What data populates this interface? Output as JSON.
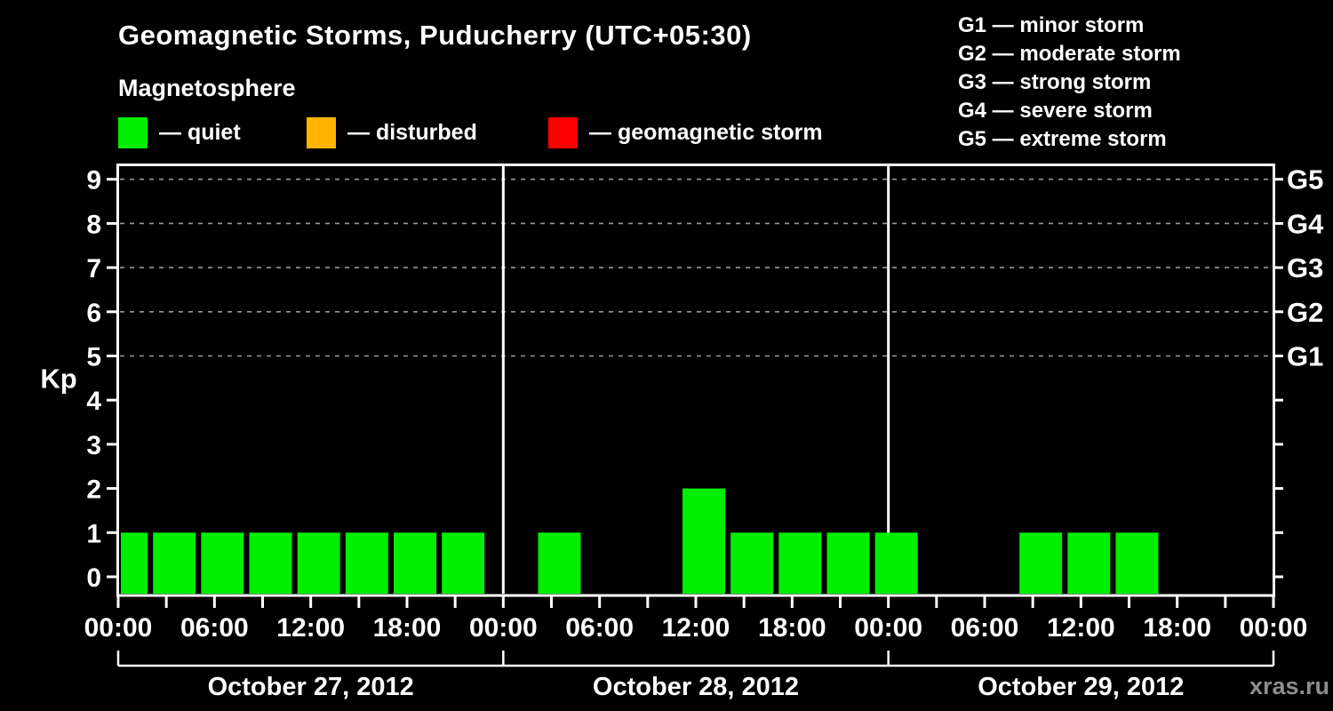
{
  "header": {
    "title": "Geomagnetic Storms, Puducherry (UTC+05:30)",
    "subtitle": "Magnetosphere"
  },
  "kp_legend": [
    {
      "color": "#00ee00",
      "label": "— quiet"
    },
    {
      "color": "#ffb400",
      "label": "— disturbed"
    },
    {
      "color": "#ff0000",
      "label": "— geomagnetic storm"
    }
  ],
  "storm_scale_legend": [
    "G1 — minor storm",
    "G2 — moderate storm",
    "G3 — strong storm",
    "G4 — severe storm",
    "G5 — extreme storm"
  ],
  "watermark": "xras.ru",
  "chart_data": {
    "type": "bar",
    "title": "Geomagnetic Storms, Puducherry (UTC+05:30)",
    "ylabel": "Kp",
    "ylim": [
      0,
      9
    ],
    "yticks": [
      0,
      1,
      2,
      3,
      4,
      5,
      6,
      7,
      8,
      9
    ],
    "grid": "dashed horizontal lines at G-storm levels only",
    "grid_dashed_at_kp": [
      5,
      6,
      7,
      8,
      9
    ],
    "right_axis": [
      {
        "kp": 5,
        "label": "G1"
      },
      {
        "kp": 6,
        "label": "G2"
      },
      {
        "kp": 7,
        "label": "G3"
      },
      {
        "kp": 8,
        "label": "G4"
      },
      {
        "kp": 9,
        "label": "G5"
      }
    ],
    "x_tick_labels": [
      "00:00",
      "06:00",
      "12:00",
      "18:00",
      "00:00",
      "06:00",
      "12:00",
      "18:00",
      "00:00",
      "06:00",
      "12:00",
      "18:00",
      "00:00"
    ],
    "slot_hours": [
      0,
      3,
      6,
      9,
      12,
      15,
      18,
      21,
      24
    ],
    "days": [
      {
        "date": "October 27, 2012",
        "kp_3h": [
          1,
          1,
          1,
          1,
          1,
          1,
          1,
          1,
          0
        ]
      },
      {
        "date": "October 28, 2012",
        "kp_3h": [
          0,
          1,
          0,
          0,
          2,
          1,
          1,
          1,
          1
        ]
      },
      {
        "date": "October 29, 2012",
        "kp_3h": [
          0,
          0,
          0,
          1,
          1,
          1,
          0,
          0,
          0
        ]
      }
    ],
    "palette": {
      "quiet": "#00ee00",
      "disturbed": "#ffb400",
      "storm": "#ff0000"
    },
    "legend_position": "top-left"
  }
}
